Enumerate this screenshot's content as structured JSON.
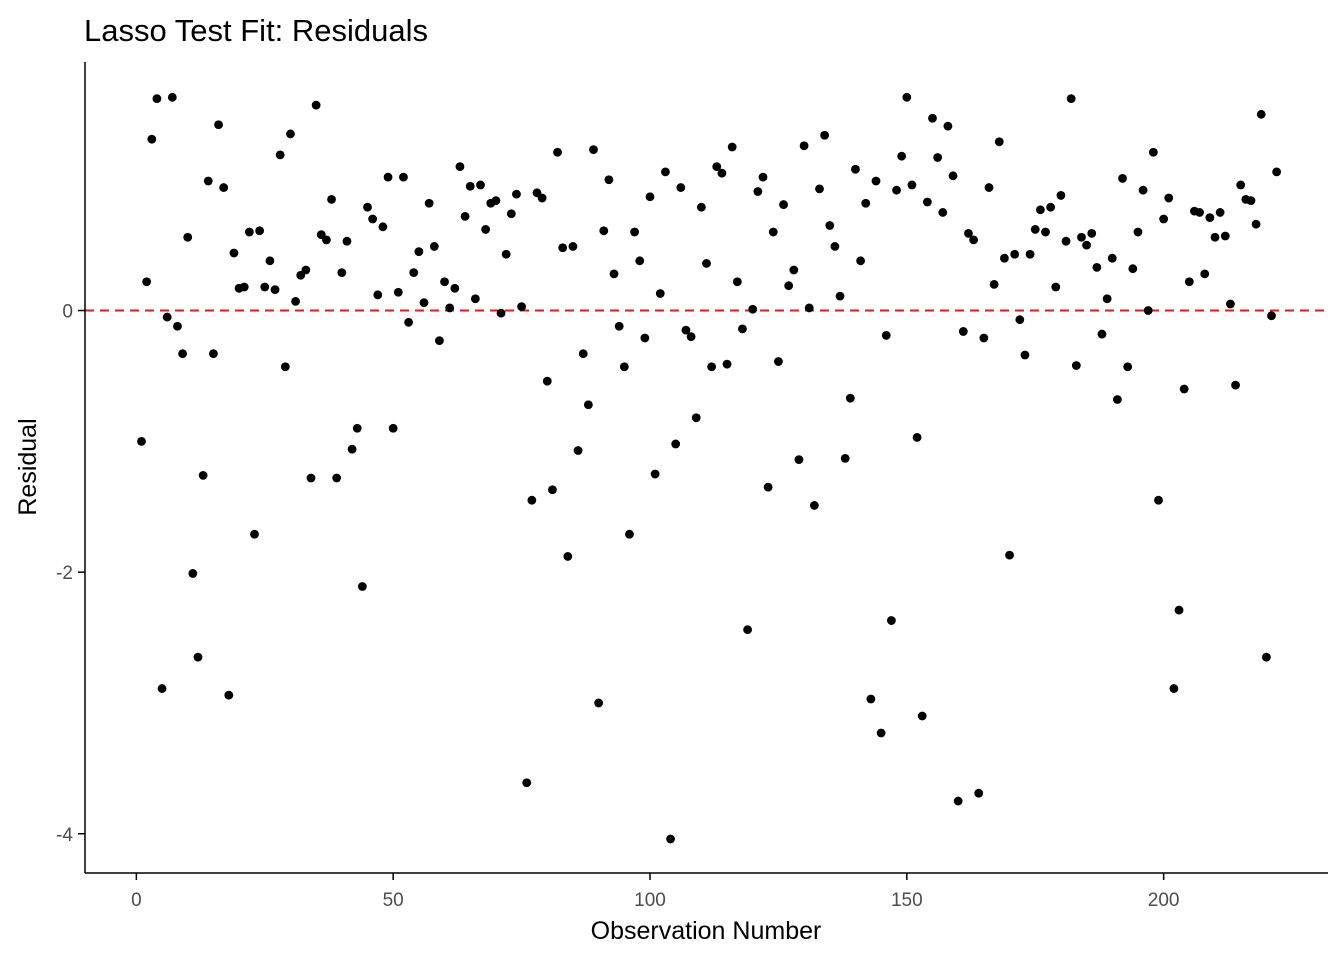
{
  "colors": {
    "background": "#ffffff",
    "axis": "#000000",
    "point": "#000000",
    "reference_line": "#e41a1c",
    "tick_text": "#4d4d4d"
  },
  "chart_data": {
    "type": "scatter",
    "title": "Lasso Test Fit: Residuals",
    "xlabel": "Observation Number",
    "ylabel": "Residual",
    "xlim": [
      -10,
      232
    ],
    "ylim": [
      -4.3,
      1.9
    ],
    "xticks": [
      0,
      50,
      100,
      150,
      200
    ],
    "xtick_labels": [
      "0",
      "50",
      "100",
      "150",
      "200"
    ],
    "yticks": [
      0,
      -2,
      -4
    ],
    "ytick_labels": [
      "0",
      "-2",
      "-4"
    ],
    "grid": false,
    "reference_line": {
      "orientation": "horizontal",
      "y": 0,
      "style": "dashed",
      "color": "#e41a1c"
    },
    "x": [
      1,
      2,
      3,
      4,
      5,
      6,
      7,
      8,
      9,
      10,
      11,
      12,
      13,
      14,
      15,
      16,
      17,
      18,
      19,
      20,
      21,
      22,
      23,
      24,
      25,
      26,
      27,
      28,
      29,
      30,
      31,
      32,
      33,
      34,
      35,
      36,
      37,
      38,
      39,
      40,
      41,
      42,
      43,
      44,
      45,
      46,
      47,
      48,
      49,
      50,
      51,
      52,
      53,
      54,
      55,
      56,
      57,
      58,
      59,
      60,
      61,
      62,
      63,
      64,
      65,
      66,
      67,
      68,
      69,
      70,
      71,
      72,
      73,
      74,
      75,
      76,
      77,
      78,
      79,
      80,
      81,
      82,
      83,
      84,
      85,
      86,
      87,
      88,
      89,
      90,
      91,
      92,
      93,
      94,
      95,
      96,
      97,
      98,
      99,
      100,
      101,
      102,
      103,
      104,
      105,
      106,
      107,
      108,
      109,
      110,
      111,
      112,
      113,
      114,
      115,
      116,
      117,
      118,
      119,
      120,
      121,
      122,
      123,
      124,
      125,
      126,
      127,
      128,
      129,
      130,
      131,
      132,
      133,
      134,
      135,
      136,
      137,
      138,
      139,
      140,
      141,
      142,
      143,
      144,
      145,
      146,
      147,
      148,
      149,
      150,
      151,
      152,
      153,
      154,
      155,
      156,
      157,
      158,
      159,
      160,
      161,
      162,
      163,
      164,
      165,
      166,
      167,
      168,
      169,
      170,
      171,
      172,
      173,
      174,
      175,
      176,
      177,
      178,
      179,
      180,
      181,
      182,
      183,
      184,
      185,
      186,
      187,
      188,
      189,
      190,
      191,
      192,
      193,
      194,
      195,
      196,
      197,
      198,
      199,
      200,
      201,
      202,
      203,
      204,
      205,
      206,
      207,
      208,
      209,
      210,
      211,
      212,
      213,
      214,
      215,
      216,
      217,
      218,
      219,
      220,
      221,
      222
    ],
    "y": [
      -1.0,
      0.22,
      1.31,
      1.62,
      -2.89,
      -0.05,
      1.63,
      -0.12,
      -0.33,
      0.56,
      -2.01,
      -2.65,
      -1.26,
      0.99,
      -0.33,
      1.42,
      0.94,
      -2.94,
      0.44,
      0.17,
      0.18,
      0.6,
      -1.71,
      0.61,
      0.18,
      0.38,
      0.16,
      1.19,
      -0.43,
      1.35,
      0.07,
      0.27,
      0.31,
      -1.28,
      1.57,
      0.58,
      0.54,
      0.85,
      -1.28,
      0.29,
      0.53,
      -1.06,
      -0.9,
      -2.11,
      0.79,
      0.7,
      0.12,
      0.64,
      1.02,
      -0.9,
      0.14,
      1.02,
      -0.09,
      0.29,
      0.45,
      0.06,
      0.82,
      0.49,
      -0.23,
      0.22,
      0.02,
      0.17,
      1.1,
      0.72,
      0.95,
      0.09,
      0.96,
      0.62,
      0.82,
      0.84,
      -0.02,
      0.43,
      0.74,
      0.89,
      0.03,
      -3.61,
      -1.45,
      0.9,
      0.86,
      -0.54,
      -1.37,
      1.21,
      0.48,
      -1.88,
      0.49,
      -1.07,
      -0.33,
      -0.72,
      1.23,
      -3.0,
      0.61,
      1.0,
      0.28,
      -0.12,
      -0.43,
      -1.71,
      0.6,
      0.38,
      -0.21,
      0.87,
      -1.25,
      0.13,
      1.06,
      -4.04,
      -1.02,
      0.94,
      -0.15,
      -0.2,
      -0.82,
      0.79,
      0.36,
      -0.43,
      1.1,
      1.05,
      -0.41,
      1.25,
      0.22,
      -0.14,
      -2.44,
      0.01,
      0.91,
      1.02,
      -1.35,
      0.6,
      -0.39,
      0.81,
      0.19,
      0.31,
      -1.14,
      1.26,
      0.02,
      -1.49,
      0.93,
      1.34,
      0.65,
      0.49,
      0.11,
      -1.13,
      -0.67,
      1.08,
      0.38,
      0.82,
      -2.97,
      0.99,
      -3.23,
      -0.19,
      -2.37,
      0.92,
      1.18,
      1.63,
      0.96,
      -0.97,
      -3.1,
      0.83,
      1.47,
      1.17,
      0.75,
      1.41,
      1.03,
      -3.75,
      -0.16,
      0.59,
      0.54,
      -3.69,
      -0.21,
      0.94,
      0.2,
      1.29,
      0.4,
      -1.87,
      0.43,
      -0.07,
      -0.34,
      0.43,
      0.62,
      0.77,
      0.6,
      0.79,
      0.18,
      0.88,
      0.53,
      1.62,
      -0.42,
      0.56,
      0.5,
      0.59,
      0.33,
      -0.18,
      0.09,
      0.4,
      -0.68,
      1.01,
      -0.43,
      0.32,
      0.6,
      0.92,
      0.0,
      1.21,
      -1.45,
      0.7,
      0.86,
      -2.89,
      -2.29,
      -0.6,
      0.22,
      0.76,
      0.75,
      0.28,
      0.71,
      0.56,
      0.75,
      0.57,
      0.05,
      -0.57,
      0.96,
      0.85,
      0.84,
      0.66,
      1.5,
      -2.65,
      -0.04,
      1.06
    ]
  }
}
